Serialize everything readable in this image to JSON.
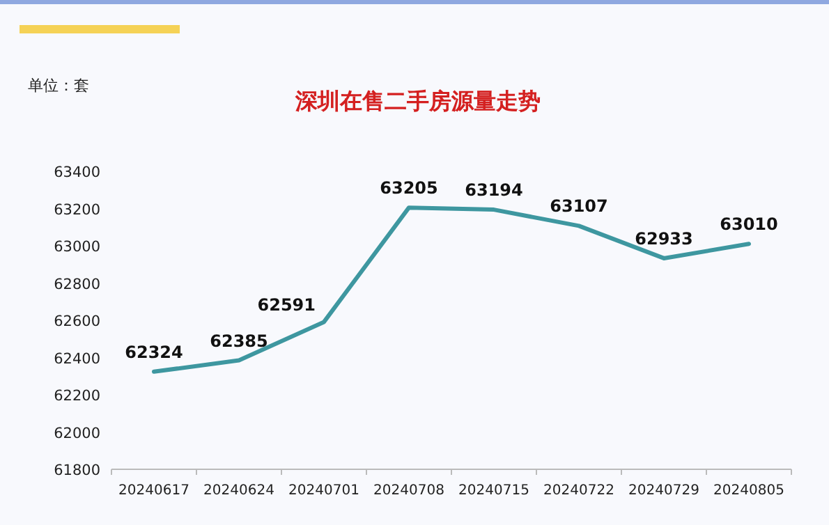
{
  "chart_data": {
    "type": "line",
    "title": "深圳在售二手房源量走势",
    "annotations": [
      "单位：套"
    ],
    "categories": [
      "20240617",
      "20240624",
      "20240701",
      "20240708",
      "20240715",
      "20240722",
      "20240729",
      "20240805"
    ],
    "series": [
      {
        "color": "#3e97a0",
        "values": [
          62324,
          62385,
          62591,
          63205,
          63194,
          63107,
          62933,
          63010
        ]
      }
    ],
    "ylim": [
      61800,
      63400
    ],
    "yticks": [
      61800,
      62000,
      62200,
      62400,
      62600,
      62800,
      63000,
      63200,
      63400
    ],
    "data_labels": true,
    "grid": false,
    "marker": "none",
    "line_style": "solid"
  }
}
